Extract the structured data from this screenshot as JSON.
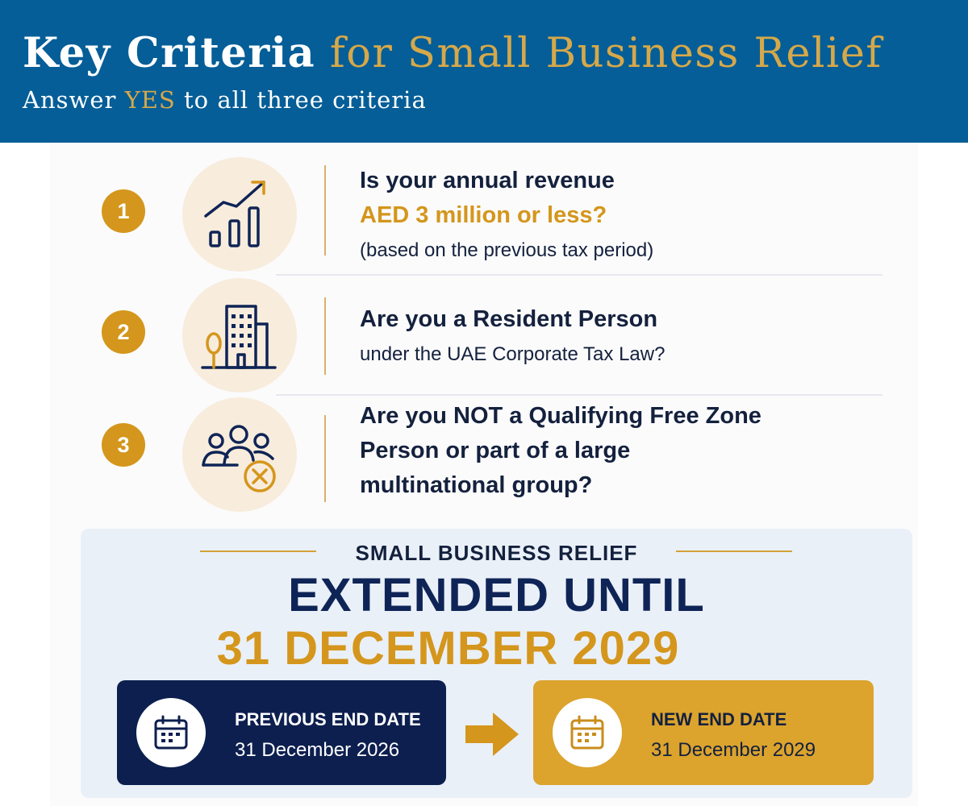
{
  "header": {
    "title_strong": "Key Criteria",
    "title_rest": "for Small Business Relief",
    "subtitle_pre": "Answer",
    "subtitle_highlight": "YES",
    "subtitle_post": "to all three criteria"
  },
  "criteria": [
    {
      "number": "1",
      "icon": "growth-chart-icon",
      "line1": "Is your annual revenue",
      "line2": "AED 3 million or less?",
      "line3": "(based on the previous tax period)"
    },
    {
      "number": "2",
      "icon": "office-building-icon",
      "line1": "Are you a Resident Person",
      "line2": "under the UAE Corporate Tax Law?"
    },
    {
      "number": "3",
      "icon": "group-excluded-icon",
      "line1": "Are you NOT a Qualifying Free Zone",
      "line2": "Person or part of a large",
      "line3": "multinational group?"
    }
  ],
  "banner": {
    "kicker": "SMALL BUSINESS RELIEF",
    "headline": "EXTENDED UNTIL",
    "date": "31 DECEMBER 2029",
    "previous": {
      "label": "PREVIOUS END DATE",
      "date": "31 December 2026",
      "icon": "calendar-icon"
    },
    "new": {
      "label": "NEW END DATE",
      "date": "31 December 2029",
      "icon": "calendar-icon"
    }
  },
  "colors": {
    "header_blue": "#055e97",
    "gold": "#d4961c",
    "navy": "#0d1f4f",
    "soft_peach": "#f8ecdc",
    "banner_bg": "#eaf0f8"
  }
}
